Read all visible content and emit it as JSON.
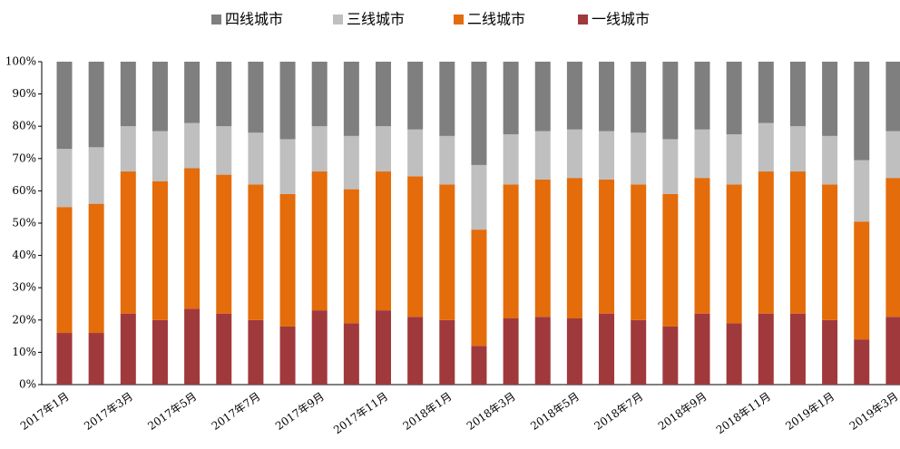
{
  "chart_data": {
    "type": "stacked_bar",
    "categories": [
      "2017年1月",
      null,
      "2017年3月",
      null,
      "2017年5月",
      null,
      "2017年7月",
      null,
      "2017年9月",
      null,
      "2017年11月",
      null,
      "2018年1月",
      null,
      "2018年3月",
      null,
      "2018年5月",
      null,
      "2018年7月",
      null,
      "2018年9月",
      null,
      "2018年11月",
      null,
      "2019年1月",
      null,
      "2019年3月"
    ],
    "series": [
      {
        "name": "四线城市",
        "color": "#7f7f7f",
        "values": [
          27,
          26.5,
          20,
          21.5,
          19,
          20,
          22,
          24,
          20,
          23,
          20,
          21,
          23,
          32,
          22.5,
          21.5,
          21,
          21.5,
          22,
          24,
          21,
          22.5,
          19,
          20,
          23,
          30.5,
          21.5
        ]
      },
      {
        "name": "三线城市",
        "color": "#bfbfbf",
        "values": [
          18,
          17.5,
          14,
          15.5,
          14,
          15,
          16,
          17,
          14,
          16.5,
          14,
          14.5,
          15,
          20,
          15.5,
          15,
          15,
          15,
          16,
          17,
          15,
          15.5,
          15,
          14,
          15,
          19,
          14.5
        ]
      },
      {
        "name": "二线城市",
        "color": "#e46c0a",
        "values": [
          39,
          40,
          44,
          43,
          43.5,
          43,
          42,
          41,
          43,
          41.5,
          43,
          43.5,
          42,
          36,
          41.5,
          42.5,
          43.5,
          41.5,
          42,
          41,
          42,
          43,
          44,
          44,
          42,
          36.5,
          43
        ]
      },
      {
        "name": "一线城市",
        "color": "#a0393b",
        "values": [
          16,
          16,
          22,
          20,
          23.5,
          22,
          20,
          18,
          23,
          19,
          23,
          21,
          20,
          12,
          20.5,
          21,
          20.5,
          22,
          20,
          18,
          22,
          19,
          22,
          22,
          20,
          14,
          21
        ]
      }
    ],
    "ylim": [
      0,
      100
    ],
    "yticks": [
      {
        "value": 0,
        "label": "0%"
      },
      {
        "value": 10,
        "label": "10%"
      },
      {
        "value": 20,
        "label": "20%"
      },
      {
        "value": 30,
        "label": "30%"
      },
      {
        "value": 40,
        "label": "40%"
      },
      {
        "value": 50,
        "label": "50%"
      },
      {
        "value": 60,
        "label": "60%"
      },
      {
        "value": 70,
        "label": "70%"
      },
      {
        "value": 80,
        "label": "80%"
      },
      {
        "value": 90,
        "label": "90%"
      },
      {
        "value": 100,
        "label": "100%"
      }
    ],
    "legend": "top"
  }
}
